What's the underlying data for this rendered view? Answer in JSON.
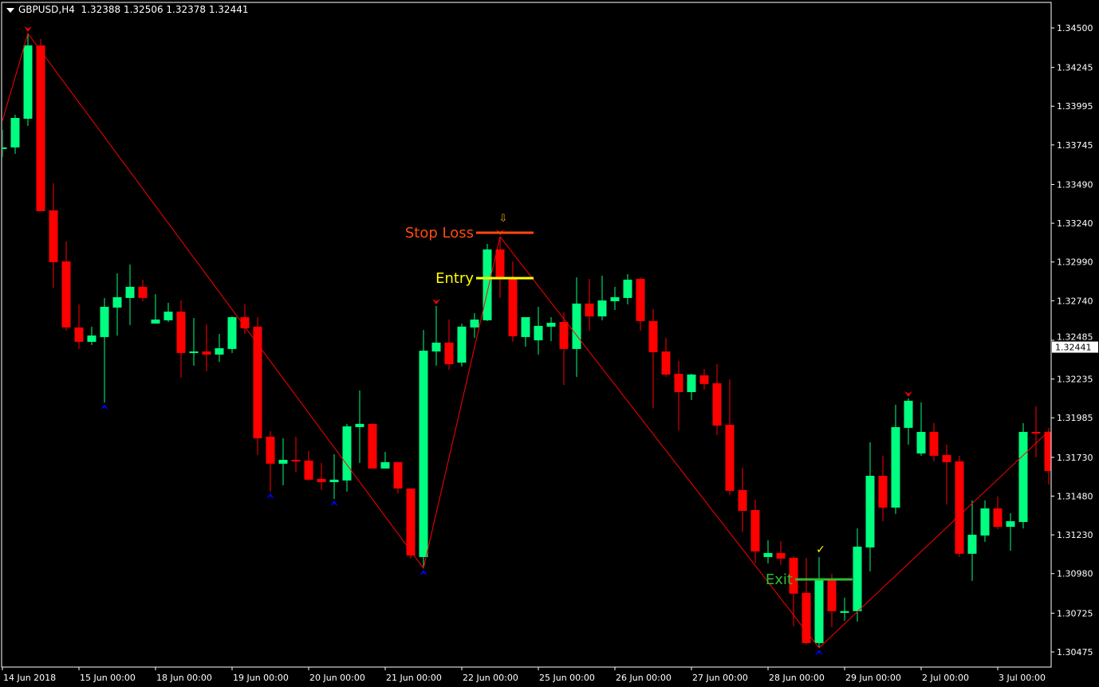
{
  "header": {
    "symbol": "GBPUSD,H4",
    "ohlc": "1.32388 1.32506 1.32378 1.32441"
  },
  "colors": {
    "background": "#000000",
    "bull": "#00ff80",
    "bear": "#ff0000",
    "zigzag": "#ff0000",
    "fractal_up": "#0000ff",
    "fractal_down": "#ff0000",
    "stop_loss": "#ff4a10",
    "entry": "#ffff00",
    "exit": "#33bb33",
    "axis": "#ffffff"
  },
  "chart_data": {
    "type": "candlestick",
    "symbol": "GBPUSD",
    "timeframe": "H4",
    "ylim": [
      1.304,
      1.346
    ],
    "grid": false,
    "current_price": "1.32441",
    "y_ticks": [
      "1.34500",
      "1.34245",
      "1.33995",
      "1.33745",
      "1.33490",
      "1.33240",
      "1.32990",
      "1.32740",
      "1.32485",
      "1.32235",
      "1.31985",
      "1.31730",
      "1.31480",
      "1.31230",
      "1.30980",
      "1.30725",
      "1.30475"
    ],
    "x_ticks": [
      {
        "candle": 0,
        "label": "14 Jun 2018"
      },
      {
        "candle": 6,
        "label": "15 Jun 00:00"
      },
      {
        "candle": 12,
        "label": "18 Jun 00:00"
      },
      {
        "candle": 18,
        "label": "19 Jun 00:00"
      },
      {
        "candle": 24,
        "label": "20 Jun 00:00"
      },
      {
        "candle": 30,
        "label": "21 Jun 00:00"
      },
      {
        "candle": 36,
        "label": "22 Jun 00:00"
      },
      {
        "candle": 42,
        "label": "25 Jun 00:00"
      },
      {
        "candle": 48,
        "label": "26 Jun 00:00"
      },
      {
        "candle": 54,
        "label": "27 Jun 00:00"
      },
      {
        "candle": 60,
        "label": "28 Jun 00:00"
      },
      {
        "candle": 66,
        "label": "29 Jun 00:00"
      },
      {
        "candle": 72,
        "label": "2 Jul 00:00"
      },
      {
        "candle": 78,
        "label": "3 Jul 00:00"
      }
    ],
    "candles_ohlc": [
      [
        1.33724,
        1.33842,
        1.33667,
        1.33729
      ],
      [
        1.33729,
        1.3394,
        1.33688,
        1.33919
      ],
      [
        1.33914,
        1.34464,
        1.33868,
        1.34387
      ],
      [
        1.34387,
        1.34428,
        1.33318,
        1.33318
      ],
      [
        1.33323,
        1.33498,
        1.32825,
        1.32989
      ],
      [
        1.32994,
        1.33123,
        1.32547,
        1.32568
      ],
      [
        1.32568,
        1.32717,
        1.32429,
        1.32475
      ],
      [
        1.32475,
        1.32573,
        1.32454,
        1.32516
      ],
      [
        1.32506,
        1.32758,
        1.32084,
        1.32701
      ],
      [
        1.32696,
        1.32917,
        1.32516,
        1.32763
      ],
      [
        1.32758,
        1.32974,
        1.32583,
        1.3283
      ],
      [
        1.3283,
        1.32876,
        1.32737,
        1.32758
      ],
      [
        1.32593,
        1.32783,
        1.32593,
        1.32619
      ],
      [
        1.32614,
        1.32727,
        1.32603,
        1.3267
      ],
      [
        1.3267,
        1.32742,
        1.32244,
        1.32403
      ],
      [
        1.32408,
        1.32629,
        1.32321,
        1.32413
      ],
      [
        1.32413,
        1.32588,
        1.32285,
        1.32393
      ],
      [
        1.32393,
        1.32526,
        1.32346,
        1.32434
      ],
      [
        1.32429,
        1.32639,
        1.32403,
        1.32634
      ],
      [
        1.32634,
        1.32717,
        1.32526,
        1.32562
      ],
      [
        1.32573,
        1.32634,
        1.31745,
        1.31853
      ],
      [
        1.31863,
        1.31899,
        1.31509,
        1.31689
      ],
      [
        1.31689,
        1.31853,
        1.3155,
        1.31714
      ],
      [
        1.31714,
        1.31863,
        1.31637,
        1.31704
      ],
      [
        1.31709,
        1.31771,
        1.31581,
        1.31586
      ],
      [
        1.31591,
        1.31694,
        1.31519,
        1.3157
      ],
      [
        1.3157,
        1.3175,
        1.31462,
        1.31586
      ],
      [
        1.31581,
        1.31946,
        1.31509,
        1.3193
      ],
      [
        1.31925,
        1.32161,
        1.31694,
        1.31946
      ],
      [
        1.31946,
        1.31951,
        1.31658,
        1.31658
      ],
      [
        1.31658,
        1.31766,
        1.31658,
        1.31699
      ],
      [
        1.31699,
        1.31699,
        1.31498,
        1.31529
      ],
      [
        1.31529,
        1.31529,
        1.31077,
        1.31097
      ],
      [
        1.31087,
        1.32552,
        1.31015,
        1.32418
      ],
      [
        1.32413,
        1.32706,
        1.32321,
        1.3247
      ],
      [
        1.3247,
        1.32619,
        1.32295,
        1.32331
      ],
      [
        1.32341,
        1.32593,
        1.32316,
        1.32573
      ],
      [
        1.32568,
        1.3266,
        1.32501,
        1.32619
      ],
      [
        1.32614,
        1.33107,
        1.32609,
        1.33071
      ],
      [
        1.33071,
        1.33153,
        1.32758,
        1.32891
      ],
      [
        1.32881,
        1.32994,
        1.32475,
        1.32511
      ],
      [
        1.32506,
        1.32634,
        1.32444,
        1.32634
      ],
      [
        1.32485,
        1.32701,
        1.32393,
        1.32578
      ],
      [
        1.32573,
        1.32634,
        1.3248,
        1.32598
      ],
      [
        1.32603,
        1.32665,
        1.32197,
        1.32429
      ],
      [
        1.32429,
        1.32891,
        1.32249,
        1.32722
      ],
      [
        1.32722,
        1.32881,
        1.32547,
        1.32639
      ],
      [
        1.32639,
        1.32902,
        1.32614,
        1.32742
      ],
      [
        1.32737,
        1.3283,
        1.3268,
        1.32763
      ],
      [
        1.32758,
        1.32912,
        1.32717,
        1.32876
      ],
      [
        1.32881,
        1.32891,
        1.32547,
        1.32609
      ],
      [
        1.32609,
        1.32686,
        1.32048,
        1.32408
      ],
      [
        1.32413,
        1.32501,
        1.32249,
        1.32264
      ],
      [
        1.32269,
        1.32352,
        1.31904,
        1.32151
      ],
      [
        1.32151,
        1.32269,
        1.321,
        1.32264
      ],
      [
        1.32259,
        1.323,
        1.32167,
        1.32203
      ],
      [
        1.32208,
        1.32331,
        1.31874,
        1.31935
      ],
      [
        1.3194,
        1.32233,
        1.31488,
        1.31514
      ],
      [
        1.31519,
        1.31663,
        1.31247,
        1.31385
      ],
      [
        1.3139,
        1.31457,
        1.31046,
        1.31123
      ],
      [
        1.31087,
        1.31195,
        1.31046,
        1.31113
      ],
      [
        1.31113,
        1.3119,
        1.31036,
        1.31077
      ],
      [
        1.31082,
        1.31092,
        1.3064,
        1.30851
      ],
      [
        1.30856,
        1.31082,
        1.30522,
        1.30532
      ],
      [
        1.30532,
        1.31087,
        1.30501,
        1.30938
      ],
      [
        1.30938,
        1.30979,
        1.30635,
        1.30738
      ],
      [
        1.30727,
        1.30825,
        1.30676,
        1.30738
      ],
      [
        1.30738,
        1.31272,
        1.30671,
        1.31154
      ],
      [
        1.31149,
        1.31827,
        1.30995,
        1.31611
      ],
      [
        1.31611,
        1.3174,
        1.31318,
        1.31406
      ],
      [
        1.31406,
        1.32069,
        1.31365,
        1.31925
      ],
      [
        1.3192,
        1.3211,
        1.31812,
        1.32095
      ],
      [
        1.31755,
        1.32084,
        1.3174,
        1.31894
      ],
      [
        1.31894,
        1.31951,
        1.31704,
        1.3174
      ],
      [
        1.31745,
        1.31812,
        1.31426,
        1.31699
      ],
      [
        1.31704,
        1.3174,
        1.31087,
        1.31108
      ],
      [
        1.31108,
        1.31452,
        1.30933,
        1.31231
      ],
      [
        1.31226,
        1.31452,
        1.31185,
        1.31401
      ],
      [
        1.31401,
        1.31478,
        1.31267,
        1.31282
      ],
      [
        1.31282,
        1.3137,
        1.31128,
        1.31318
      ],
      [
        1.31313,
        1.31951,
        1.31272,
        1.31894
      ],
      [
        1.31894,
        1.32059,
        1.3173,
        1.31889
      ],
      [
        1.31894,
        1.3192,
        1.31555,
        1.31642
      ]
    ],
    "zigzag": [
      {
        "candle": 0,
        "price": 1.339
      },
      {
        "candle": 2,
        "price": 1.34464
      },
      {
        "candle": 33,
        "price": 1.31015
      },
      {
        "candle": 39,
        "price": 1.33153
      },
      {
        "candle": 64,
        "price": 1.30501
      },
      {
        "candle": 82,
        "price": 1.31899
      }
    ],
    "fractals": [
      {
        "candle": 2,
        "type": "down",
        "price": 1.34464
      },
      {
        "candle": 8,
        "type": "up",
        "price": 1.32084
      },
      {
        "candle": 21,
        "type": "up",
        "price": 1.31509
      },
      {
        "candle": 26,
        "type": "up",
        "price": 1.31462
      },
      {
        "candle": 33,
        "type": "up",
        "price": 1.31015
      },
      {
        "candle": 34,
        "type": "down",
        "price": 1.32706
      },
      {
        "candle": 39,
        "type": "down",
        "price": 1.33153
      },
      {
        "candle": 64,
        "type": "up",
        "price": 1.30501
      },
      {
        "candle": 71,
        "type": "down",
        "price": 1.3211
      }
    ],
    "annotations": [
      {
        "label": "Stop Loss",
        "price": 1.33179,
        "from_candle": 37,
        "to_candle": 41,
        "color_key": "stop_loss",
        "marker": "down-arrow"
      },
      {
        "label": "Entry",
        "price": 1.32886,
        "from_candle": 37,
        "to_candle": 41,
        "color_key": "entry"
      },
      {
        "label": "Exit",
        "price": 1.30943,
        "from_candle": 62,
        "to_candle": 66,
        "color_key": "exit",
        "marker": "check"
      }
    ]
  }
}
